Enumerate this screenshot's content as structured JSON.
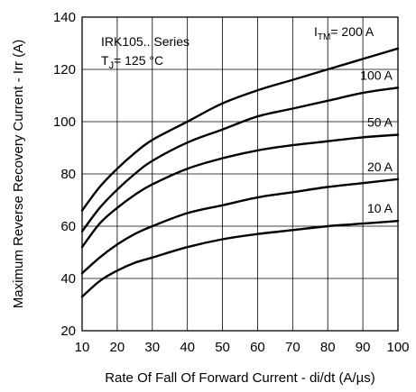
{
  "chart_data": {
    "type": "line",
    "xlabel": "Rate Of Fall Of Forward Current - di/dt (A/µs)",
    "ylabel": "Maximum Reverse Recovery Current - Irr (A)",
    "xlim": [
      10,
      100
    ],
    "ylim": [
      20,
      140
    ],
    "xticks": [
      10,
      20,
      30,
      40,
      50,
      60,
      70,
      80,
      90,
      100
    ],
    "yticks": [
      20,
      40,
      60,
      80,
      100,
      120,
      140
    ],
    "grid": true,
    "annotations": {
      "series_title": "IRK105.. Series",
      "temp_prefix": "T",
      "temp_sub": "J",
      "temp_suffix": "= 125 °C",
      "param_prefix": "I",
      "param_sub": "TM",
      "param_suffix": "= 200 A"
    },
    "x": [
      10,
      15,
      20,
      25,
      30,
      40,
      50,
      60,
      70,
      80,
      90,
      100
    ],
    "series": [
      {
        "name": "200 A",
        "label": "",
        "values": [
          66,
          75,
          82,
          88,
          93,
          100,
          107,
          112,
          116,
          120,
          124,
          128
        ]
      },
      {
        "name": "100 A",
        "label": "100 A",
        "values": [
          58,
          67,
          74,
          80,
          85,
          92,
          97,
          102,
          105,
          108,
          111,
          113
        ]
      },
      {
        "name": "50 A",
        "label": "50 A",
        "values": [
          52,
          61,
          67,
          72,
          76,
          82,
          86,
          89,
          91,
          92.5,
          94,
          95
        ]
      },
      {
        "name": "20 A",
        "label": "20 A",
        "values": [
          42,
          48,
          53,
          57,
          60,
          65,
          68,
          71,
          73,
          75,
          76.5,
          78
        ]
      },
      {
        "name": "10 A",
        "label": "10 A",
        "values": [
          33,
          39,
          43,
          46,
          48,
          52,
          55,
          57,
          58.5,
          60,
          61,
          62
        ]
      }
    ]
  }
}
